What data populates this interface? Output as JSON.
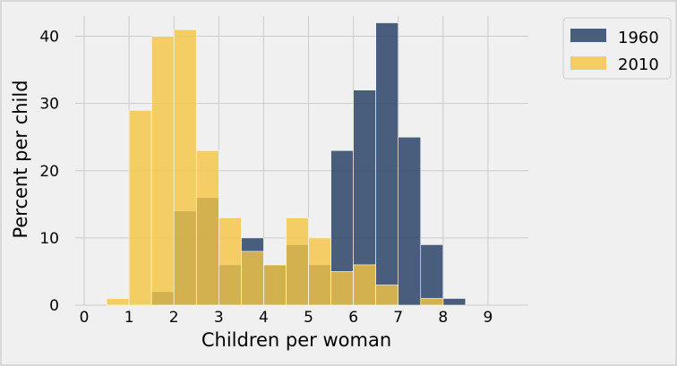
{
  "chart_data": {
    "type": "bar",
    "xlabel": "Children per woman",
    "ylabel": "Percent per child",
    "xlim": [
      -0.2,
      9.9
    ],
    "ylim": [
      0,
      43
    ],
    "x_ticks": [
      0,
      1,
      2,
      3,
      4,
      5,
      6,
      7,
      8,
      9
    ],
    "y_ticks": [
      0,
      10,
      20,
      30,
      40
    ],
    "grid": true,
    "legend_position": "outside-top-right",
    "bin_edges": [
      0.5,
      1.0,
      1.5,
      2.0,
      2.5,
      3.0,
      3.5,
      4.0,
      4.5,
      5.0,
      5.5,
      6.0,
      6.5,
      7.0,
      7.5,
      8.0,
      8.5
    ],
    "series": [
      {
        "name": "1960",
        "color": "#1f3a5f",
        "opacity": 0.8,
        "values": [
          0,
          0,
          2,
          14,
          16,
          6,
          10,
          6,
          9,
          6,
          23,
          32,
          42,
          25,
          9,
          1
        ]
      },
      {
        "name": "2010",
        "color": "#f5c542",
        "opacity": 0.8,
        "values": [
          1,
          29,
          40,
          41,
          23,
          13,
          8,
          6,
          13,
          10,
          5,
          6,
          3,
          0,
          1,
          0
        ]
      }
    ]
  }
}
